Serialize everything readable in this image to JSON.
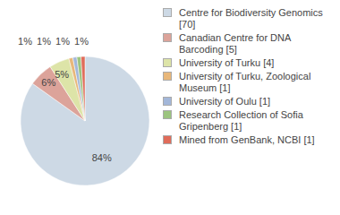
{
  "chart_data": {
    "type": "pie",
    "categories": [
      "Centre for Biodiversity Genomics [70]",
      "Canadian Centre for DNA Barcoding [5]",
      "University of Turku [4]",
      "University of Turku, Zoological Museum [1]",
      "University of Oulu [1]",
      "Research Collection of Sofia Gripenberg [1]",
      "Mined from GenBank, NCBI [1]"
    ],
    "values": [
      84,
      6,
      5,
      1,
      1,
      1,
      1
    ],
    "value_labels": [
      "84%",
      "6%",
      "5%",
      "1%",
      "1%",
      "1%",
      "1%"
    ],
    "colors": [
      "#cdd9e5",
      "#dca39a",
      "#dde4a8",
      "#e8b77a",
      "#a3b7d9",
      "#9cc47f",
      "#e06c5a"
    ],
    "data_labels": true,
    "legend": "right"
  }
}
